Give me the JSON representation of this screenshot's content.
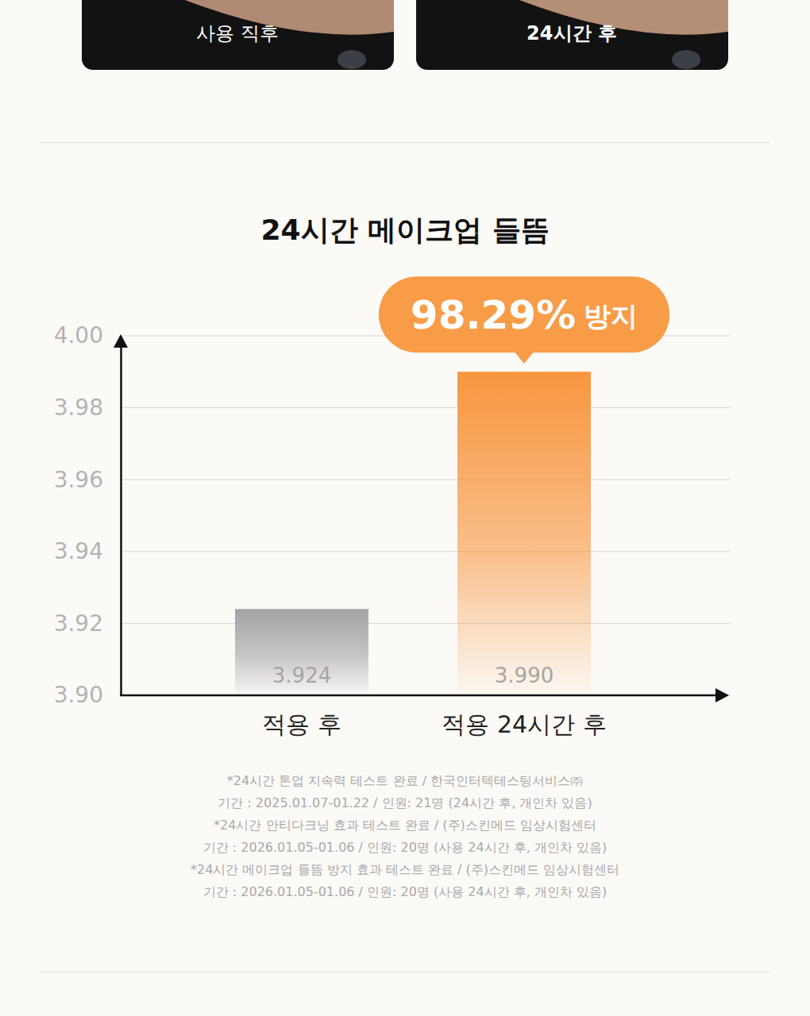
{
  "photos": [
    "사용 직후",
    "24시간 후"
  ],
  "chart_data": {
    "type": "bar",
    "title": "24시간 메이크업 들뜸",
    "categories": [
      "적용 후",
      "적용 24시간 후"
    ],
    "values": [
      3.924,
      3.99
    ],
    "value_labels": [
      "3.924",
      "3.990"
    ],
    "colors": [
      "#a3a3a3",
      "#f8963f"
    ],
    "ylim": [
      3.9,
      4.0
    ],
    "yticks": [
      {
        "value": 3.9,
        "label": "3.90"
      },
      3.92,
      3.94,
      3.96,
      3.98,
      {
        "value": 4,
        "label": "4.00"
      }
    ],
    "grid": true,
    "data_labels": true,
    "annotation": [
      "98.29%",
      "방지"
    ]
  },
  "footnotes": [
    "*24시간 톤업 지속력 테스트 완료 / 한국인터텍테스팅서비스㈜",
    "기간 : 2025.01.07-01.22 / 인원: 21명 (24시간 후, 개인차 있음)",
    "*24시간 안티다크닝 효과 테스트 완료 / (주)스킨메드 임상시험센터",
    "기간 : 2026.01.05-01.06 / 인원: 20명 (사용 24시간 후, 개인차 있음)",
    "*24시간 메이크업 들뜸 방지 효과 테스트 완료 / (주)스킨메드 임상시험센터",
    "기간 : 2026.01.05-01.06 / 인원: 20명 (사용 24시간 후, 개인차 있음)"
  ]
}
